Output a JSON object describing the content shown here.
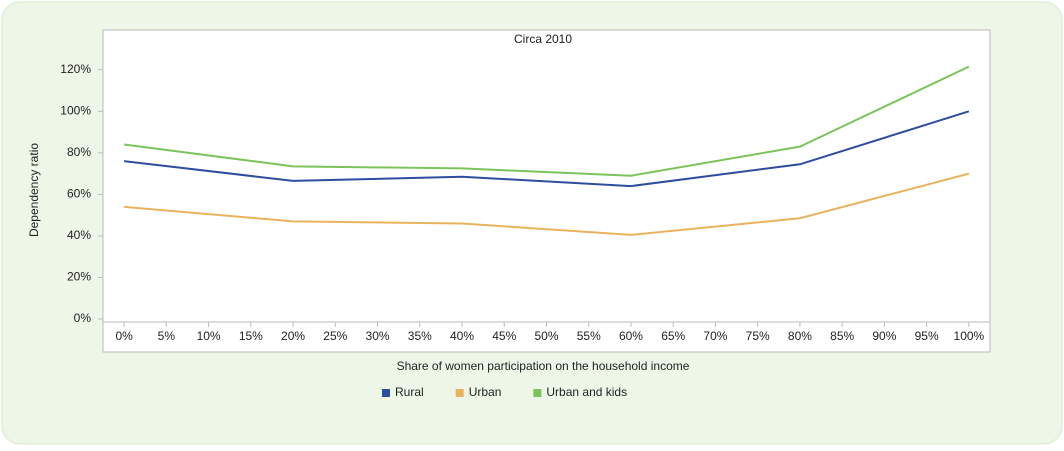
{
  "chart_data": {
    "type": "line",
    "title": "Circa 2010",
    "x_label": "Share of women participation on the household income",
    "y_label": "Dependency ratio",
    "x": [
      0,
      20,
      40,
      60,
      80,
      100
    ],
    "series": [
      {
        "name": "Rural",
        "color": "#2f4c9f",
        "values": [
          76,
          66.5,
          68.5,
          64,
          74.5,
          100
        ]
      },
      {
        "name": "Urban",
        "color": "#e8b35e",
        "values": [
          54,
          47,
          46,
          40.5,
          48.5,
          70
        ]
      },
      {
        "name": "Urban and kids",
        "color": "#7cc35a",
        "values": [
          84,
          73.5,
          72.5,
          69,
          83,
          121.5
        ]
      }
    ],
    "xlim": [
      -2.5,
      102.5
    ],
    "xticks": [
      {
        "value": 0,
        "label": "0%"
      },
      {
        "value": 5,
        "label": "5%"
      },
      {
        "value": 10,
        "label": "10%"
      },
      {
        "value": 15,
        "label": "15%"
      },
      {
        "value": 20,
        "label": "20%"
      },
      {
        "value": 25,
        "label": "25%"
      },
      {
        "value": 30,
        "label": "30%"
      },
      {
        "value": 35,
        "label": "35%"
      },
      {
        "value": 40,
        "label": "40%"
      },
      {
        "value": 45,
        "label": "45%"
      },
      {
        "value": 50,
        "label": "50%"
      },
      {
        "value": 55,
        "label": "55%"
      },
      {
        "value": 60,
        "label": "60%"
      },
      {
        "value": 65,
        "label": "65%"
      },
      {
        "value": 70,
        "label": "70%"
      },
      {
        "value": 75,
        "label": "75%"
      },
      {
        "value": 80,
        "label": "80%"
      },
      {
        "value": 85,
        "label": "85%"
      },
      {
        "value": 90,
        "label": "90%"
      },
      {
        "value": 95,
        "label": "95%"
      },
      {
        "value": 100,
        "label": "100%"
      }
    ],
    "ylim": [
      0,
      130
    ],
    "yticks": [
      {
        "value": 0,
        "label": "0%"
      },
      {
        "value": 20,
        "label": "20%"
      },
      {
        "value": 40,
        "label": "40%"
      },
      {
        "value": 60,
        "label": "60%"
      },
      {
        "value": 80,
        "label": "80%"
      },
      {
        "value": 100,
        "label": "100%"
      },
      {
        "value": 120,
        "label": "120%"
      }
    ],
    "legend": "bottom"
  }
}
